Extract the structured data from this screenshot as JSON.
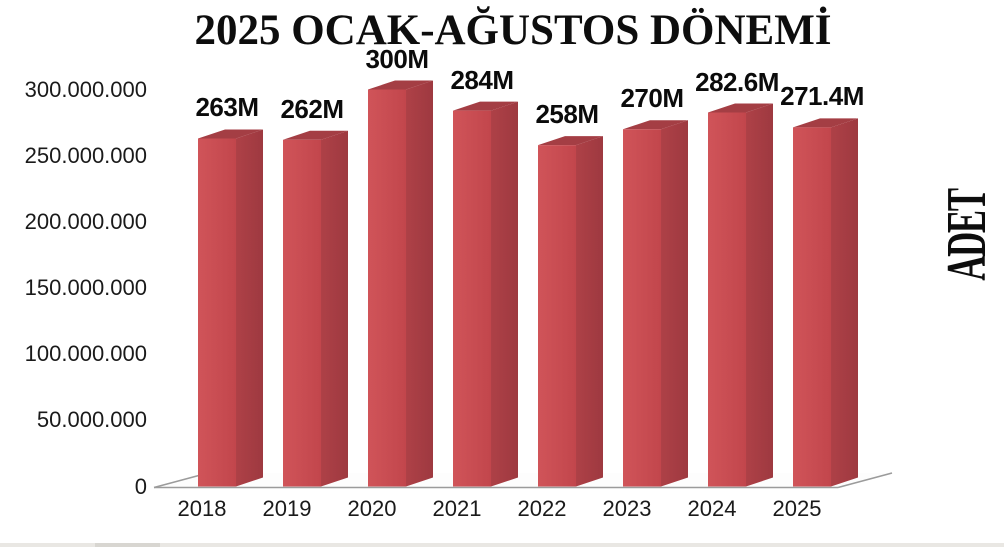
{
  "title": "2025 OCAK-AĞUSTOS DÖNEMİ",
  "right_axis_label": "ADET",
  "chart_data": {
    "type": "bar",
    "style": "3d-column",
    "title": "2025 OCAK-AĞUSTOS DÖNEMİ",
    "categories": [
      "2018",
      "2019",
      "2020",
      "2021",
      "2022",
      "2023",
      "2024",
      "2025"
    ],
    "values": [
      263000000,
      262000000,
      300000000,
      284000000,
      258000000,
      270000000,
      282600000,
      271400000
    ],
    "bar_labels": [
      "263M",
      "262M",
      "300M",
      "284M",
      "258M",
      "270M",
      "282.6M",
      "271.4M"
    ],
    "y_ticks": [
      {
        "label": "0",
        "value": 0
      },
      {
        "label": "50.000.000",
        "value": 50000000
      },
      {
        "label": "100.000.000",
        "value": 100000000
      },
      {
        "label": "150.000.000",
        "value": 150000000
      },
      {
        "label": "200.000.000",
        "value": 200000000
      },
      {
        "label": "250.000.000",
        "value": 250000000
      },
      {
        "label": "300.000.000",
        "value": 300000000
      }
    ],
    "ylim": [
      0,
      300000000
    ],
    "xlabel": "",
    "ylabel_right": "ADET",
    "grid": false,
    "legend": "none",
    "colors": {
      "bar_front_light": "#d05459",
      "bar_front_dark": "#c2464c",
      "bar_side_light": "#ae4147",
      "bar_side_dark": "#9e3940",
      "bar_top": "#a43e44",
      "floor_fill": "#fdfdfd",
      "axis_line": "#9b9b9b",
      "text": "#1a1a1a"
    }
  },
  "footer_strip": {
    "track_color": "#e9e7e3",
    "segment_color": "#d8d6d1"
  }
}
